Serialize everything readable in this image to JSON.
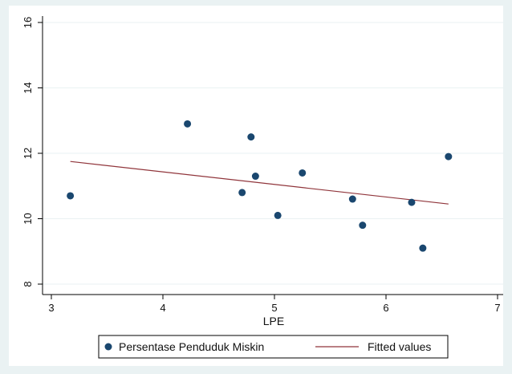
{
  "chart_data": {
    "type": "scatter",
    "xlabel": "LPE",
    "ylabel": "",
    "xlim": [
      3,
      7
    ],
    "ylim": [
      8,
      16
    ],
    "x_ticks": [
      3,
      4,
      5,
      6,
      7
    ],
    "y_ticks": [
      8,
      10,
      12,
      14,
      16
    ],
    "grid": "horizontal",
    "legend_position": "bottom",
    "series": [
      {
        "name": "Persentase Penduduk Miskin",
        "kind": "scatter",
        "color": "#1a476f",
        "points": [
          {
            "x": 3.17,
            "y": 10.7
          },
          {
            "x": 4.22,
            "y": 12.9
          },
          {
            "x": 4.71,
            "y": 10.8
          },
          {
            "x": 4.79,
            "y": 12.5
          },
          {
            "x": 4.83,
            "y": 11.3
          },
          {
            "x": 5.03,
            "y": 10.1
          },
          {
            "x": 5.25,
            "y": 11.4
          },
          {
            "x": 5.7,
            "y": 10.6
          },
          {
            "x": 5.79,
            "y": 9.8
          },
          {
            "x": 6.23,
            "y": 10.5
          },
          {
            "x": 6.33,
            "y": 9.1
          },
          {
            "x": 6.56,
            "y": 11.9
          }
        ]
      },
      {
        "name": "Fitted values",
        "kind": "line",
        "color": "#90353b",
        "points": [
          {
            "x": 3.17,
            "y": 11.75
          },
          {
            "x": 6.56,
            "y": 10.45
          }
        ]
      }
    ]
  }
}
